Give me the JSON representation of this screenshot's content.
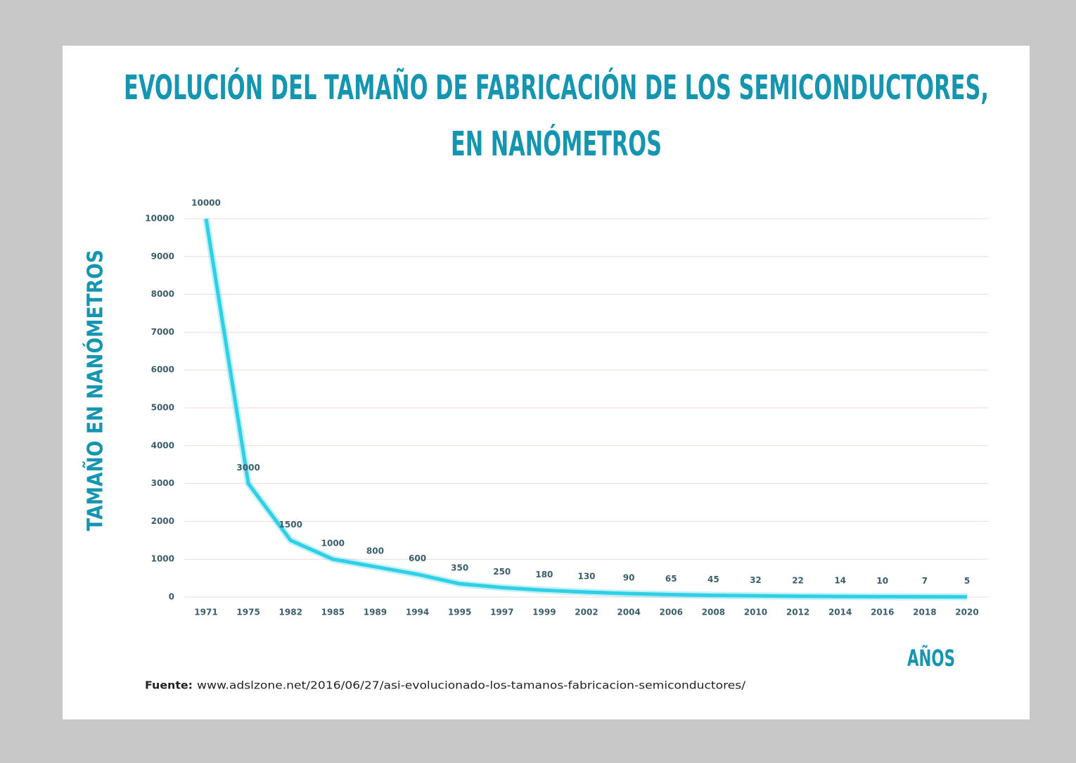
{
  "chart_data": {
    "type": "line",
    "title": [
      "EVOLUCIÓN DEL TAMAÑO DE FABRICACIÓN DE LOS SEMICONDUCTORES,",
      "EN NANÓMETROS"
    ],
    "y_label": "TAMAÑO EN NANÓMETROS",
    "x_label": "AÑOS",
    "source": {
      "label": "Fuente:",
      "text": "www.adslzone.net/2016/06/27/asi-evolucionado-los-tamanos-fabricacion-semiconductores/"
    },
    "categories": [
      "1971",
      "1975",
      "1982",
      "1985",
      "1989",
      "1994",
      "1995",
      "1997",
      "1999",
      "2002",
      "2004",
      "2006",
      "2008",
      "2010",
      "2012",
      "2014",
      "2016",
      "2018",
      "2020"
    ],
    "values": [
      10000,
      3000,
      1500,
      1000,
      800,
      600,
      350,
      250,
      180,
      130,
      90,
      65,
      45,
      32,
      22,
      14,
      10,
      7,
      5
    ],
    "color": "#2fd0e6",
    "ylim": [
      0,
      10000
    ],
    "yticks": [
      0,
      1000,
      2000,
      3000,
      4000,
      5000,
      6000,
      7000,
      8000,
      9000,
      10000
    ],
    "grid": true
  }
}
